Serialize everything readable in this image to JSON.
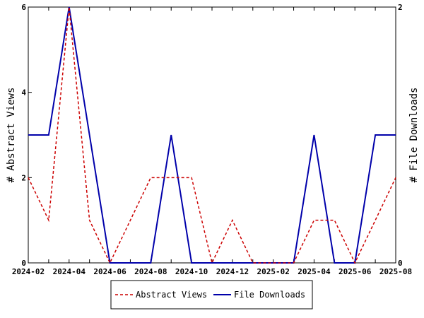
{
  "chart_data": {
    "type": "line",
    "x": [
      "2024-02",
      "2024-03",
      "2024-04",
      "2024-05",
      "2024-06",
      "2024-07",
      "2024-08",
      "2024-09",
      "2024-10",
      "2024-11",
      "2024-12",
      "2025-01",
      "2025-02",
      "2025-03",
      "2025-04",
      "2025-05",
      "2025-06",
      "2025-07",
      "2025-08"
    ],
    "x_tick_labels": [
      "2024-02",
      "2024-04",
      "2024-06",
      "2024-08",
      "2024-10",
      "2024-12",
      "2025-02",
      "2025-04",
      "2025-06",
      "2025-08"
    ],
    "series": [
      {
        "name": "Abstract Views",
        "axis": "left",
        "color": "#cc0000",
        "style": "dashed",
        "values": [
          2,
          1,
          6,
          1,
          0,
          1,
          2,
          2,
          2,
          0,
          1,
          0,
          0,
          0,
          1,
          1,
          0,
          1,
          2
        ]
      },
      {
        "name": "File Downloads",
        "axis": "right",
        "color": "#0000aa",
        "style": "solid",
        "values": [
          1,
          1,
          2,
          1,
          0,
          0,
          0,
          1,
          0,
          0,
          0,
          0,
          0,
          0,
          1,
          0,
          0,
          1,
          1
        ]
      }
    ],
    "ylabel_left": "# Abstract Views",
    "ylabel_right": "# File Downloads",
    "ylim_left": [
      0,
      6
    ],
    "ylim_right": [
      0,
      2
    ],
    "y_ticks_left": [
      0,
      2,
      4,
      6
    ],
    "y_ticks_right": [
      0,
      2
    ],
    "legend_placement": "bottom-center",
    "grid": false
  }
}
